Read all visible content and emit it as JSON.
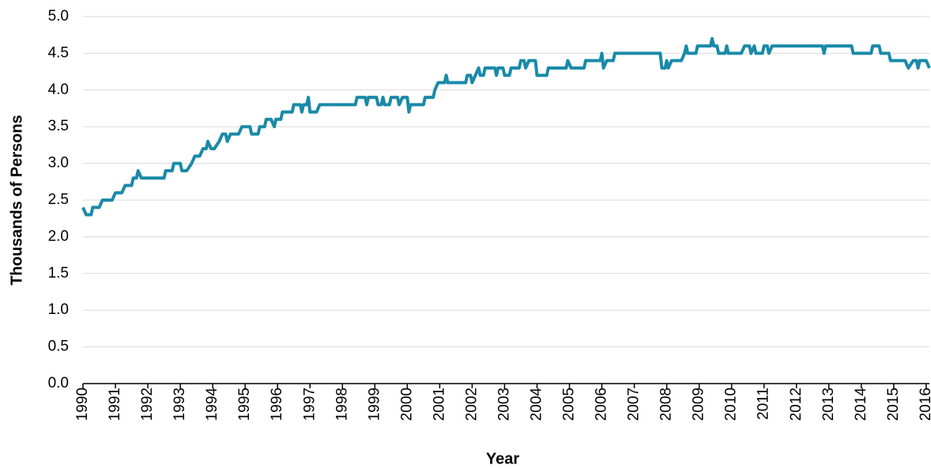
{
  "chart_data": {
    "type": "line",
    "x_label": "Year",
    "y_label": "Thousands of Persons",
    "xlim": [
      1990,
      2016.1
    ],
    "xticks": [
      1990,
      1991,
      1992,
      1993,
      1994,
      1995,
      1996,
      1997,
      1998,
      1999,
      2000,
      2001,
      2002,
      2003,
      2004,
      2005,
      2006,
      2007,
      2008,
      2009,
      2010,
      2011,
      2012,
      2013,
      2014,
      2015,
      2016
    ],
    "ylim": [
      0,
      5
    ],
    "yticks": [
      {
        "value": 0,
        "label": "0.0"
      },
      0.5,
      {
        "value": 1,
        "label": "1.0"
      },
      1.5,
      {
        "value": 2,
        "label": "2.0"
      },
      2.5,
      {
        "value": 3,
        "label": "3.0"
      },
      3.5,
      {
        "value": 4,
        "label": "4.0"
      },
      4.5,
      {
        "value": 5,
        "label": "5.0"
      }
    ],
    "grid": true,
    "series": [
      {
        "color": "#1a8aa8",
        "x": [
          1990.0,
          1990.1,
          1990.25,
          1990.3,
          1990.5,
          1990.6,
          1990.9,
          1991.0,
          1991.2,
          1991.3,
          1991.5,
          1991.55,
          1991.65,
          1991.7,
          1991.8,
          1992.5,
          1992.55,
          1992.75,
          1992.8,
          1993.0,
          1993.05,
          1993.2,
          1993.35,
          1993.45,
          1993.6,
          1993.7,
          1993.8,
          1993.85,
          1993.95,
          1994.05,
          1994.2,
          1994.3,
          1994.4,
          1994.45,
          1994.55,
          1994.8,
          1994.9,
          1995.15,
          1995.2,
          1995.4,
          1995.45,
          1995.6,
          1995.65,
          1995.8,
          1995.9,
          1995.95,
          1996.1,
          1996.15,
          1996.45,
          1996.5,
          1996.7,
          1996.75,
          1996.8,
          1996.9,
          1996.95,
          1997.0,
          1997.2,
          1997.3,
          1998.4,
          1998.45,
          1998.7,
          1998.75,
          1998.8,
          1999.05,
          1999.1,
          1999.2,
          1999.25,
          1999.3,
          1999.45,
          1999.5,
          1999.7,
          1999.75,
          1999.85,
          2000.0,
          2000.05,
          2000.1,
          2000.5,
          2000.55,
          2000.8,
          2000.85,
          2000.95,
          2001.15,
          2001.2,
          2001.25,
          2001.8,
          2001.85,
          2001.95,
          2002.0,
          2002.1,
          2002.2,
          2002.25,
          2002.35,
          2002.4,
          2002.7,
          2002.75,
          2002.8,
          2002.95,
          2003.0,
          2003.15,
          2003.2,
          2003.45,
          2003.5,
          2003.6,
          2003.65,
          2003.75,
          2003.95,
          2004.0,
          2004.3,
          2004.35,
          2004.9,
          2004.95,
          2005.05,
          2005.45,
          2005.5,
          2005.95,
          2006.0,
          2006.05,
          2006.15,
          2006.35,
          2006.4,
          2007.8,
          2007.85,
          2007.95,
          2008.0,
          2008.05,
          2008.15,
          2008.45,
          2008.55,
          2008.6,
          2008.65,
          2008.9,
          2008.95,
          2009.35,
          2009.4,
          2009.45,
          2009.55,
          2009.6,
          2009.8,
          2009.85,
          2009.9,
          2010.3,
          2010.4,
          2010.55,
          2010.6,
          2010.7,
          2010.75,
          2010.95,
          2011.0,
          2011.1,
          2011.15,
          2011.25,
          2012.8,
          2012.85,
          2012.9,
          2013.7,
          2013.75,
          2014.3,
          2014.35,
          2014.55,
          2014.6,
          2014.85,
          2014.9,
          2015.35,
          2015.45,
          2015.6,
          2015.7,
          2015.75,
          2015.8,
          2016.0,
          2016.1
        ],
        "values": [
          2.4,
          2.3,
          2.3,
          2.4,
          2.4,
          2.5,
          2.5,
          2.6,
          2.6,
          2.7,
          2.7,
          2.8,
          2.8,
          2.9,
          2.8,
          2.8,
          2.9,
          2.9,
          3.0,
          3.0,
          2.9,
          2.9,
          3.0,
          3.1,
          3.1,
          3.2,
          3.2,
          3.3,
          3.2,
          3.2,
          3.3,
          3.4,
          3.4,
          3.3,
          3.4,
          3.4,
          3.5,
          3.5,
          3.4,
          3.4,
          3.5,
          3.5,
          3.6,
          3.6,
          3.5,
          3.6,
          3.6,
          3.7,
          3.7,
          3.8,
          3.8,
          3.7,
          3.8,
          3.8,
          3.9,
          3.7,
          3.7,
          3.8,
          3.8,
          3.9,
          3.9,
          3.8,
          3.9,
          3.9,
          3.8,
          3.8,
          3.9,
          3.8,
          3.8,
          3.9,
          3.9,
          3.8,
          3.9,
          3.9,
          3.7,
          3.8,
          3.8,
          3.9,
          3.9,
          4.0,
          4.1,
          4.1,
          4.2,
          4.1,
          4.1,
          4.2,
          4.2,
          4.1,
          4.2,
          4.3,
          4.2,
          4.2,
          4.3,
          4.3,
          4.2,
          4.3,
          4.3,
          4.2,
          4.2,
          4.3,
          4.3,
          4.4,
          4.4,
          4.3,
          4.4,
          4.4,
          4.2,
          4.2,
          4.3,
          4.3,
          4.4,
          4.3,
          4.3,
          4.4,
          4.4,
          4.5,
          4.3,
          4.4,
          4.4,
          4.5,
          4.5,
          4.3,
          4.3,
          4.4,
          4.3,
          4.4,
          4.4,
          4.5,
          4.6,
          4.5,
          4.5,
          4.6,
          4.6,
          4.7,
          4.6,
          4.6,
          4.5,
          4.5,
          4.6,
          4.5,
          4.5,
          4.6,
          4.6,
          4.5,
          4.6,
          4.5,
          4.5,
          4.6,
          4.6,
          4.5,
          4.6,
          4.6,
          4.5,
          4.6,
          4.6,
          4.5,
          4.5,
          4.6,
          4.6,
          4.5,
          4.5,
          4.4,
          4.4,
          4.3,
          4.4,
          4.4,
          4.3,
          4.4,
          4.4,
          4.3
        ]
      }
    ]
  }
}
